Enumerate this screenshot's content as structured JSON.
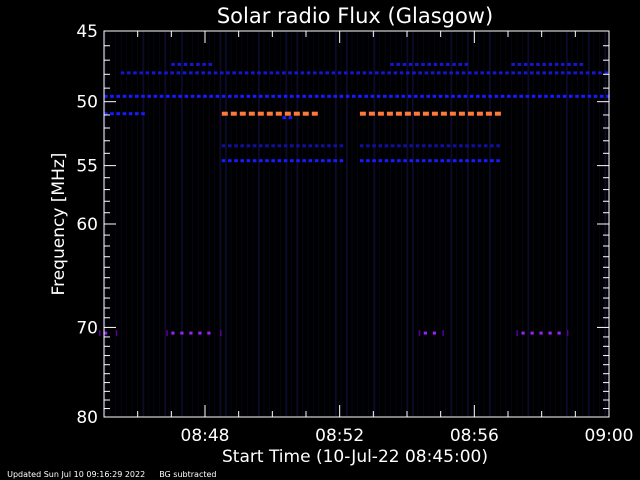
{
  "chart_data": {
    "type": "heatmap",
    "title": "Solar radio Flux (Glasgow)",
    "xlabel": "Start Time (10-Jul-22 08:45:00)",
    "ylabel": "Frequency [MHz]",
    "x_tick_labels": [
      "08:48",
      "08:52",
      "08:56",
      "09:00"
    ],
    "x_tick_minutes": [
      3,
      7,
      11,
      15
    ],
    "x_range_minutes": [
      0,
      15
    ],
    "y_tick_values": [
      45,
      50,
      55,
      60,
      70,
      80
    ],
    "y_tick_labels": [
      "45",
      "50",
      "55",
      "60",
      "70",
      "80"
    ],
    "y_range": [
      45,
      80
    ],
    "y_scale": "log",
    "colors": {
      "background": "#000000",
      "axes": "#ffffff",
      "faint": "#0a0a3a",
      "blue": "#1a1aff",
      "dim_blue": "#1010a0",
      "orange": "#ff7a3a",
      "purple": "#9a20ff"
    },
    "bands": [
      {
        "freq": 47.3,
        "start_min": 2.0,
        "end_min": 3.2,
        "level": "faint-blue"
      },
      {
        "freq": 47.3,
        "start_min": 12.1,
        "end_min": 14.2,
        "level": "faint-blue"
      },
      {
        "freq": 47.3,
        "start_min": 8.5,
        "end_min": 10.8,
        "level": "faint-blue"
      },
      {
        "freq": 47.9,
        "start_min": 0.5,
        "end_min": 15.0,
        "level": "faint-blue"
      },
      {
        "freq": 49.6,
        "start_min": 0.0,
        "end_min": 15.0,
        "level": "blue"
      },
      {
        "freq": 50.9,
        "start_min": 0.0,
        "end_min": 1.2,
        "level": "blue"
      },
      {
        "freq": 50.9,
        "start_min": 3.5,
        "end_min": 6.3,
        "level": "orange"
      },
      {
        "freq": 50.9,
        "start_min": 7.6,
        "end_min": 11.7,
        "level": "orange"
      },
      {
        "freq": 51.2,
        "start_min": 5.3,
        "end_min": 5.6,
        "level": "blue"
      },
      {
        "freq": 53.4,
        "start_min": 3.5,
        "end_min": 7.0,
        "level": "dim-blue"
      },
      {
        "freq": 53.4,
        "start_min": 7.6,
        "end_min": 11.7,
        "level": "dim-blue"
      },
      {
        "freq": 54.6,
        "start_min": 3.5,
        "end_min": 7.0,
        "level": "blue"
      },
      {
        "freq": 54.6,
        "start_min": 7.6,
        "end_min": 11.7,
        "level": "blue"
      },
      {
        "freq": 70.6,
        "start_min": 0.0,
        "end_min": 0.2,
        "level": "purple"
      },
      {
        "freq": 70.6,
        "start_min": 2.0,
        "end_min": 3.3,
        "level": "purple"
      },
      {
        "freq": 70.6,
        "start_min": 9.5,
        "end_min": 9.9,
        "level": "purple"
      },
      {
        "freq": 70.6,
        "start_min": 12.4,
        "end_min": 13.6,
        "level": "purple"
      }
    ]
  },
  "footer": {
    "updated": "Updated Sun Jul 10 09:16:29 2022",
    "note": "BG subtracted"
  }
}
